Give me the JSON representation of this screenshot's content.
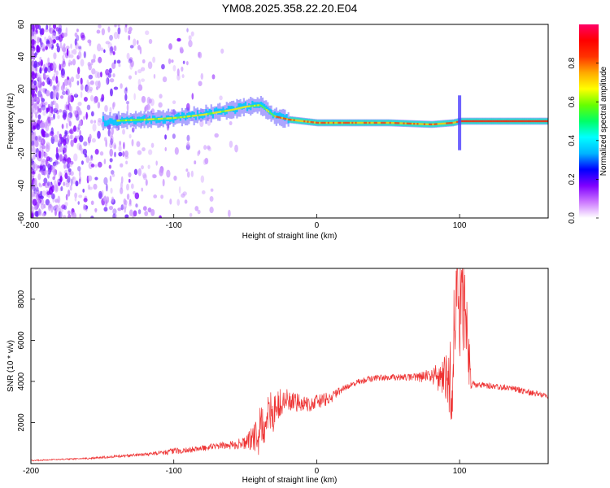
{
  "title": "YM08.2025.358.22.20.E04",
  "chart_data": [
    {
      "type": "heatmap",
      "title": "YM08.2025.358.22.20.E04",
      "xlabel": "Height of straight line (km)",
      "ylabel": "Frequency (Hz)",
      "xlim": [
        -200,
        162
      ],
      "ylim": [
        -60,
        60
      ],
      "xticks": [
        -200,
        -100,
        0,
        100
      ],
      "yticks": [
        -60,
        -40,
        -20,
        0,
        20,
        40,
        60
      ],
      "colorbar": {
        "label": "Normalized spectral amplitude",
        "range": [
          0,
          1
        ],
        "ticks": [
          "0.0",
          "0.2",
          "0.4",
          "0.6",
          "0.8"
        ],
        "colormap": [
          "#ffffff",
          "#cc77ff",
          "#7f00ff",
          "#0000ff",
          "#00b4ff",
          "#00ffff",
          "#00ff66",
          "#66ff00",
          "#ffff00",
          "#ffaa00",
          "#ff3300",
          "#ff0000",
          "#ff0066"
        ]
      },
      "features": {
        "noise_region_x": [
          -200,
          -60
        ],
        "ridge": {
          "x": [
            -150,
            -120,
            -100,
            -80,
            -60,
            -50,
            -40,
            -30,
            -20,
            0,
            50,
            80,
            95,
            100,
            110,
            162
          ],
          "freq": [
            0,
            1,
            2,
            4,
            7,
            9,
            10,
            3,
            1,
            -1,
            -1,
            -2,
            -1,
            0,
            0,
            0
          ]
        },
        "spike_x": 100,
        "spike_freq_range": [
          -18,
          16
        ]
      }
    },
    {
      "type": "line",
      "xlabel": "Height of straight line (km)",
      "ylabel": "SNR (10 * v/v)",
      "xlim": [
        -200,
        162
      ],
      "ylim": [
        0,
        9500
      ],
      "xticks": [
        -200,
        -100,
        0,
        100
      ],
      "yticks": [
        2000,
        4000,
        6000,
        8000
      ],
      "series": [
        {
          "name": "SNR",
          "color": "#ee3333",
          "x": [
            -200,
            -180,
            -160,
            -140,
            -120,
            -100,
            -90,
            -80,
            -70,
            -60,
            -50,
            -45,
            -40,
            -35,
            -30,
            -25,
            -20,
            -15,
            -10,
            -5,
            0,
            10,
            20,
            30,
            40,
            50,
            60,
            70,
            80,
            85,
            90,
            95,
            98,
            100,
            103,
            105,
            108,
            110,
            120,
            130,
            140,
            150,
            162
          ],
          "values": [
            150,
            200,
            250,
            350,
            450,
            600,
            650,
            750,
            850,
            900,
            1000,
            1200,
            1500,
            2200,
            2700,
            2900,
            3100,
            2900,
            3000,
            2900,
            3000,
            3200,
            3700,
            4000,
            4150,
            4200,
            4200,
            4200,
            4250,
            4200,
            4300,
            4400,
            8500,
            7000,
            8800,
            6500,
            3900,
            3850,
            3800,
            3700,
            3600,
            3450,
            3300
          ],
          "amplitude": [
            30,
            30,
            40,
            60,
            80,
            150,
            150,
            150,
            150,
            200,
            300,
            600,
            1200,
            900,
            1200,
            700,
            700,
            500,
            450,
            400,
            350,
            300,
            150,
            150,
            150,
            150,
            150,
            200,
            400,
            700,
            1500,
            2500,
            3000,
            3500,
            3000,
            2500,
            300,
            150,
            150,
            150,
            150,
            150,
            150
          ]
        }
      ]
    }
  ]
}
